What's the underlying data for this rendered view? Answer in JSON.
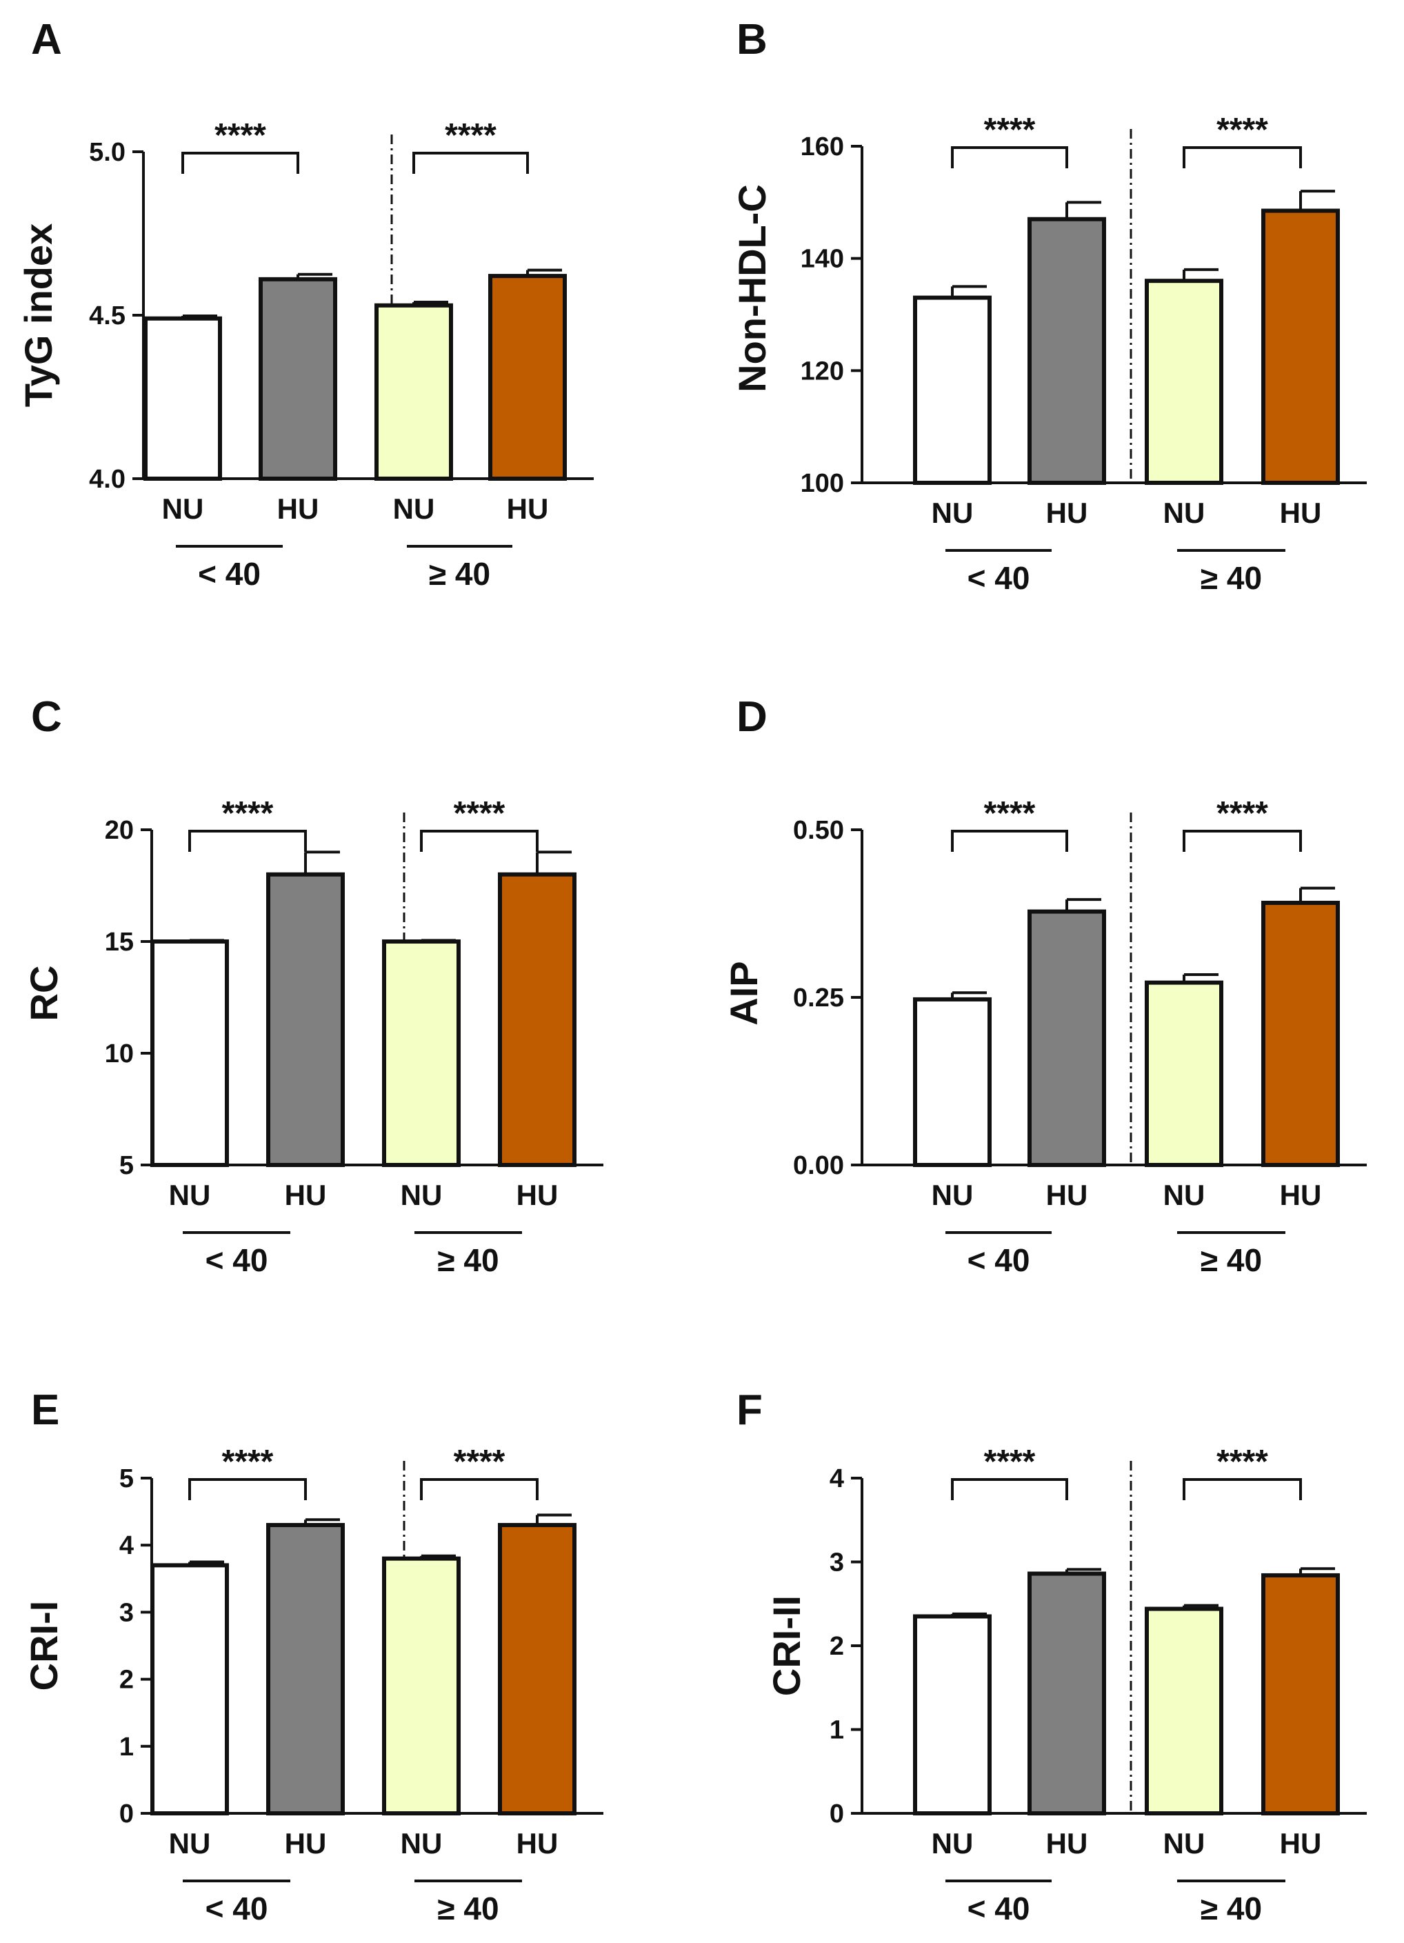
{
  "chart_data": [
    {
      "panel": "A",
      "type": "bar",
      "ylabel": "TyG index",
      "ylim": [
        4.0,
        5.0
      ],
      "yticks": [
        "4.0",
        "4.5",
        "5.0"
      ],
      "categories": [
        "NU",
        "HU",
        "NU",
        "HU"
      ],
      "groups": [
        "< 40",
        "≥ 40"
      ],
      "values": [
        4.49,
        4.61,
        4.53,
        4.62
      ],
      "errors": [
        0.008,
        0.015,
        0.01,
        0.018
      ],
      "significance": [
        "****",
        "****"
      ]
    },
    {
      "panel": "B",
      "type": "bar",
      "ylabel": "Non-HDL-C",
      "ylim": [
        100,
        160
      ],
      "yticks": [
        "100",
        "120",
        "140",
        "160"
      ],
      "categories": [
        "NU",
        "HU",
        "NU",
        "HU"
      ],
      "groups": [
        "< 40",
        "≥ 40"
      ],
      "values": [
        133,
        147,
        136,
        148.5
      ],
      "errors": [
        2,
        3,
        2,
        3.5
      ],
      "significance": [
        "****",
        "****"
      ]
    },
    {
      "panel": "C",
      "type": "bar",
      "ylabel": "RC",
      "ylim": [
        5,
        20
      ],
      "yticks": [
        "5",
        "10",
        "15",
        "20"
      ],
      "categories": [
        "NU",
        "HU",
        "NU",
        "HU"
      ],
      "groups": [
        "< 40",
        "≥ 40"
      ],
      "values": [
        15.0,
        18.0,
        15.0,
        18.0
      ],
      "errors": [
        0.05,
        1.0,
        0.05,
        1.0
      ],
      "significance": [
        "****",
        "****"
      ]
    },
    {
      "panel": "D",
      "type": "bar",
      "ylabel": "AIP",
      "ylim": [
        0.0,
        0.5
      ],
      "yticks": [
        "0.00",
        "0.25",
        "0.50"
      ],
      "categories": [
        "NU",
        "HU",
        "NU",
        "HU"
      ],
      "groups": [
        "< 40",
        "≥ 40"
      ],
      "values": [
        0.247,
        0.378,
        0.272,
        0.391
      ],
      "errors": [
        0.01,
        0.018,
        0.012,
        0.022
      ],
      "significance": [
        "****",
        "****"
      ]
    },
    {
      "panel": "E",
      "type": "bar",
      "ylabel": "CRI-I",
      "ylim": [
        0,
        5
      ],
      "yticks": [
        "0",
        "1",
        "2",
        "3",
        "4",
        "5"
      ],
      "categories": [
        "NU",
        "HU",
        "NU",
        "HU"
      ],
      "groups": [
        "< 40",
        "≥ 40"
      ],
      "values": [
        3.7,
        4.3,
        3.8,
        4.3
      ],
      "errors": [
        0.05,
        0.08,
        0.04,
        0.15
      ],
      "significance": [
        "****",
        "****"
      ]
    },
    {
      "panel": "F",
      "type": "bar",
      "ylabel": "CRI-II",
      "ylim": [
        0,
        4
      ],
      "yticks": [
        "0",
        "1",
        "2",
        "3",
        "4"
      ],
      "categories": [
        "NU",
        "HU",
        "NU",
        "HU"
      ],
      "groups": [
        "< 40",
        "≥ 40"
      ],
      "values": [
        2.35,
        2.86,
        2.44,
        2.84
      ],
      "errors": [
        0.03,
        0.05,
        0.04,
        0.08
      ],
      "significance": [
        "****",
        "****"
      ]
    }
  ],
  "colors": {
    "NU_lt40": "#ffffff",
    "HU_lt40": "#808080",
    "NU_ge40": "#f3ffc4",
    "HU_ge40": "#c05c00",
    "stroke": "#111111"
  }
}
